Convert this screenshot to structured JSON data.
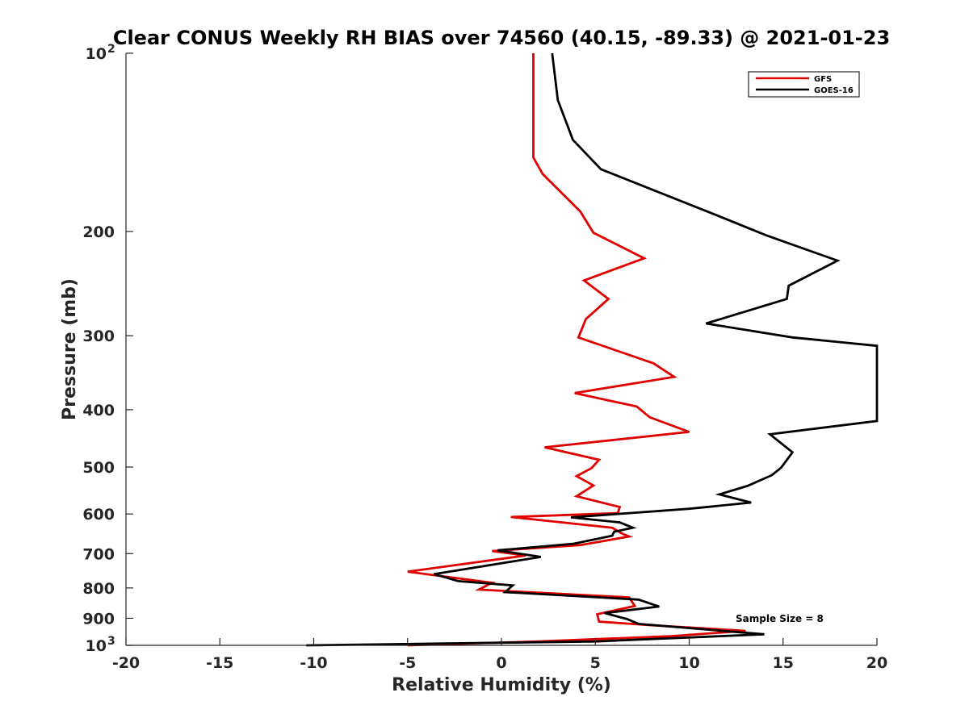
{
  "chart_data": {
    "type": "line",
    "title": "Clear CONUS Weekly RH BIAS over 74560 (40.15, -89.33) @ 2021-01-23",
    "xlabel": "Relative Humidity (%)",
    "ylabel": "Pressure (mb)",
    "xlim": [
      -20,
      20
    ],
    "ylim": [
      100,
      1000
    ],
    "y_scale": "log",
    "y_reversed": true,
    "x_ticks": [
      "-20",
      "-15",
      "-10",
      "-5",
      "0",
      "5",
      "10",
      "15",
      "20"
    ],
    "y_ticks": [
      {
        "p": 100,
        "base": "10",
        "exp": "2"
      },
      {
        "p": 200,
        "base": "200",
        "exp": ""
      },
      {
        "p": 300,
        "base": "300",
        "exp": ""
      },
      {
        "p": 400,
        "base": "400",
        "exp": ""
      },
      {
        "p": 500,
        "base": "500",
        "exp": ""
      },
      {
        "p": 600,
        "base": "600",
        "exp": ""
      },
      {
        "p": 700,
        "base": "700",
        "exp": ""
      },
      {
        "p": 800,
        "base": "800",
        "exp": ""
      },
      {
        "p": 900,
        "base": "900",
        "exp": ""
      },
      {
        "p": 1000,
        "base": "10",
        "exp": "3"
      }
    ],
    "grid": false,
    "legend_position": "top-right",
    "annotation": "Sample Size = 8",
    "series": [
      {
        "name": "GFS",
        "color": "#e00000",
        "points": [
          [
            1.7,
            100
          ],
          [
            1.7,
            150
          ],
          [
            2.2,
            160
          ],
          [
            4.2,
            185
          ],
          [
            4.9,
            201
          ],
          [
            7.6,
            222
          ],
          [
            4.4,
            242
          ],
          [
            5.7,
            260
          ],
          [
            4.5,
            281
          ],
          [
            4.1,
            302
          ],
          [
            8.1,
            334
          ],
          [
            9.2,
            352
          ],
          [
            3.9,
            375
          ],
          [
            7.2,
            395
          ],
          [
            7.9,
            412
          ],
          [
            10.0,
            436
          ],
          [
            2.3,
            463
          ],
          [
            5.2,
            486
          ],
          [
            4.8,
            502
          ],
          [
            4.0,
            518
          ],
          [
            4.9,
            537
          ],
          [
            4.0,
            560
          ],
          [
            6.3,
            584
          ],
          [
            6.2,
            598
          ],
          [
            0.5,
            607
          ],
          [
            5.9,
            633
          ],
          [
            6.4,
            647
          ],
          [
            6.8,
            655
          ],
          [
            4.2,
            677
          ],
          [
            -0.5,
            693
          ],
          [
            1.3,
            705
          ],
          [
            -5.0,
            751
          ],
          [
            -0.5,
            784
          ],
          [
            -1.2,
            805
          ],
          [
            6.8,
            830
          ],
          [
            7.1,
            858
          ],
          [
            5.1,
            886
          ],
          [
            5.2,
            912
          ],
          [
            8.0,
            925
          ],
          [
            13.0,
            945
          ],
          [
            9.0,
            965
          ],
          [
            2.0,
            985
          ],
          [
            -5.0,
            1000
          ]
        ]
      },
      {
        "name": "GOES-16",
        "color": "#000000",
        "points": [
          [
            2.7,
            100
          ],
          [
            3.0,
            120
          ],
          [
            3.8,
            140
          ],
          [
            5.3,
            157
          ],
          [
            11.5,
            188
          ],
          [
            14.1,
            203
          ],
          [
            17.9,
            224
          ],
          [
            15.3,
            247
          ],
          [
            15.2,
            260
          ],
          [
            10.9,
            286
          ],
          [
            15.5,
            302
          ],
          [
            20.0,
            312
          ],
          [
            20.0,
            418
          ],
          [
            14.3,
            440
          ],
          [
            15.5,
            472
          ],
          [
            14.9,
            501
          ],
          [
            14.4,
            516
          ],
          [
            13.1,
            538
          ],
          [
            11.6,
            556
          ],
          [
            13.3,
            574
          ],
          [
            10.0,
            588
          ],
          [
            3.7,
            608
          ],
          [
            6.3,
            620
          ],
          [
            7.0,
            633
          ],
          [
            6.0,
            643
          ],
          [
            5.9,
            653
          ],
          [
            3.8,
            674
          ],
          [
            -0.2,
            691
          ],
          [
            2.1,
            709
          ],
          [
            -3.6,
            758
          ],
          [
            -2.3,
            779
          ],
          [
            0.6,
            792
          ],
          [
            0.2,
            813
          ],
          [
            7.3,
            837
          ],
          [
            8.4,
            860
          ],
          [
            5.5,
            882
          ],
          [
            6.7,
            903
          ],
          [
            7.3,
            920
          ],
          [
            10.0,
            935
          ],
          [
            14.0,
            958
          ],
          [
            5.0,
            985
          ],
          [
            -10.4,
            1000
          ]
        ]
      }
    ]
  }
}
